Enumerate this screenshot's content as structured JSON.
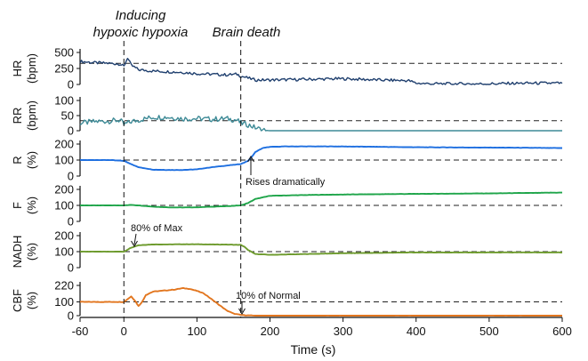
{
  "chart_data": {
    "type": "line",
    "xlabel": "Time (s)",
    "xlim": [
      -60,
      600
    ],
    "xticks": [
      "-60",
      "0",
      "100",
      "200",
      "300",
      "400",
      "500",
      "600"
    ],
    "phases": [
      {
        "label_line1": "Inducing",
        "label_line2": "hypoxic hypoxia",
        "time": 0
      },
      {
        "label_line1": "Brain death",
        "label_line2": "",
        "time": 160
      }
    ],
    "panels": [
      {
        "id": "hr",
        "label": "HR",
        "unit": "(bpm)",
        "color": "#1f3f6e",
        "ylim": [
          0,
          500
        ],
        "yticks": [
          "500",
          "250",
          "0"
        ],
        "baseline": 330,
        "x": [
          -60,
          -40,
          -20,
          -5,
          0,
          5,
          10,
          20,
          40,
          60,
          80,
          100,
          120,
          140,
          155,
          160,
          170,
          180,
          200,
          250,
          300,
          350,
          390,
          400,
          420,
          450,
          500,
          550,
          600
        ],
        "y": [
          360,
          340,
          330,
          320,
          280,
          420,
          300,
          230,
          210,
          200,
          190,
          170,
          160,
          150,
          160,
          130,
          100,
          70,
          70,
          80,
          90,
          70,
          60,
          20,
          10,
          10,
          10,
          20,
          20
        ]
      },
      {
        "id": "rr",
        "label": "RR",
        "unit": "(bpm)",
        "color": "#3d8a96",
        "ylim": [
          0,
          100
        ],
        "yticks": [
          "100",
          "50",
          "0"
        ],
        "baseline": 33,
        "x": [
          -60,
          -40,
          -20,
          -5,
          0,
          10,
          20,
          40,
          60,
          80,
          100,
          120,
          140,
          155,
          160,
          170,
          180,
          190,
          200,
          300,
          400,
          500,
          600
        ],
        "y": [
          25,
          30,
          32,
          35,
          20,
          30,
          35,
          45,
          45,
          40,
          40,
          38,
          40,
          35,
          25,
          20,
          10,
          2,
          0,
          0,
          0,
          0,
          0
        ]
      },
      {
        "id": "r",
        "label": "R",
        "unit": "(%)",
        "color": "#1e6fe0",
        "ylim": [
          0,
          200
        ],
        "yticks": [
          "200",
          "100",
          "0"
        ],
        "baseline": 100,
        "x": [
          -60,
          -20,
          0,
          10,
          20,
          40,
          60,
          80,
          100,
          120,
          140,
          160,
          170,
          175,
          180,
          190,
          200,
          220,
          300,
          400,
          500,
          600
        ],
        "y": [
          100,
          100,
          95,
          75,
          55,
          40,
          38,
          38,
          42,
          55,
          65,
          75,
          95,
          120,
          150,
          175,
          182,
          185,
          185,
          180,
          178,
          175
        ],
        "annotation": {
          "text": "Rises dramatically",
          "x": 172,
          "y": 90
        }
      },
      {
        "id": "f",
        "label": "F",
        "unit": "(%)",
        "color": "#1fa54a",
        "ylim": [
          0,
          200
        ],
        "yticks": [
          "200",
          "100",
          "0"
        ],
        "baseline": 100,
        "x": [
          -60,
          -20,
          0,
          10,
          20,
          40,
          60,
          80,
          100,
          120,
          140,
          160,
          170,
          180,
          200,
          250,
          300,
          400,
          500,
          600
        ],
        "y": [
          100,
          100,
          100,
          103,
          100,
          92,
          88,
          87,
          88,
          92,
          95,
          100,
          115,
          140,
          160,
          165,
          168,
          172,
          175,
          180
        ]
      },
      {
        "id": "nadh",
        "label": "NADH",
        "unit": "(%)",
        "color": "#6e9b2e",
        "ylim": [
          0,
          200
        ],
        "yticks": [
          "200",
          "100",
          "0"
        ],
        "baseline": 100,
        "x": [
          -60,
          -20,
          0,
          10,
          20,
          40,
          60,
          80,
          100,
          120,
          140,
          160,
          165,
          170,
          180,
          200,
          250,
          300,
          400,
          500,
          600
        ],
        "y": [
          100,
          100,
          100,
          125,
          140,
          145,
          145,
          146,
          146,
          145,
          144,
          142,
          130,
          110,
          85,
          80,
          85,
          90,
          95,
          95,
          95
        ],
        "annotation": {
          "text": "80% of Max",
          "x": 12,
          "y": 140
        }
      },
      {
        "id": "cbf",
        "label": "CBF",
        "unit": "(%)",
        "color": "#e2761f",
        "ylim": [
          0,
          220
        ],
        "yticks": [
          "220",
          "100",
          "0"
        ],
        "baseline": 100,
        "x": [
          -60,
          -20,
          0,
          5,
          10,
          15,
          20,
          25,
          30,
          40,
          50,
          60,
          70,
          80,
          90,
          100,
          110,
          120,
          130,
          140,
          150,
          160,
          170,
          180,
          200,
          300,
          400,
          500,
          600
        ],
        "y": [
          100,
          100,
          100,
          120,
          140,
          110,
          70,
          100,
          150,
          175,
          180,
          185,
          190,
          200,
          195,
          180,
          160,
          120,
          80,
          40,
          15,
          5,
          2,
          0,
          0,
          0,
          0,
          0,
          0
        ],
        "annotation": {
          "text": "10% of Normal",
          "x": 160,
          "y": 10
        }
      }
    ]
  }
}
